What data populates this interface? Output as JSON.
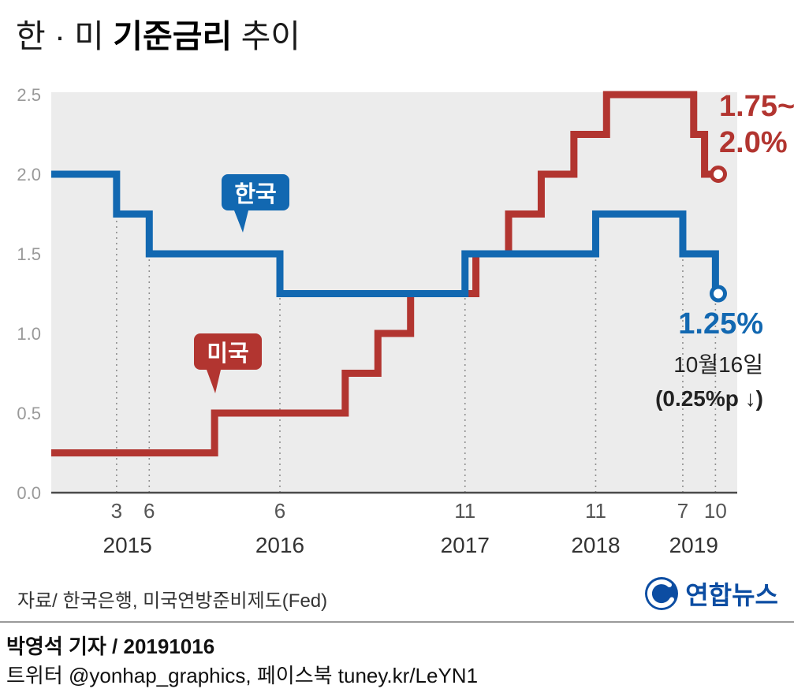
{
  "title": {
    "prefix": "한 · 미 ",
    "bold": "기준금리",
    "suffix": " 추이"
  },
  "labels": {
    "korea_bubble": "한국",
    "us_bubble": "미국"
  },
  "annotations": {
    "us_rate_line1": "1.75~",
    "us_rate_line2": "2.0%",
    "korea_rate": "1.25%",
    "korea_date": "10월16일",
    "korea_change": "(0.25%p ↓)"
  },
  "source": "자료/ 한국은행, 미국연방준비제도(Fed)",
  "logo_text": "연합뉴스",
  "credit": "박영석 기자 /  20191016",
  "social": "트위터 @yonhap_graphics, 페이스북 tuney.kr/LeYN1",
  "chart_data": {
    "type": "line",
    "step": true,
    "title": "한·미 기준금리 추이",
    "ylim": [
      0.0,
      2.5
    ],
    "y_ticks": [
      0.0,
      0.5,
      1.0,
      1.5,
      2.0,
      2.5
    ],
    "x_domain": [
      "2014-09",
      "2019-12"
    ],
    "x_ticks": [
      {
        "date": "2015-03",
        "label": "3"
      },
      {
        "date": "2015-06",
        "label": "6"
      },
      {
        "date": "2016-06",
        "label": "6"
      },
      {
        "date": "2017-11",
        "label": "11"
      },
      {
        "date": "2018-11",
        "label": "11"
      },
      {
        "date": "2019-07",
        "label": "7"
      },
      {
        "date": "2019-10",
        "label": "10"
      }
    ],
    "year_ticks": [
      {
        "date": "2015-04",
        "label": "2015"
      },
      {
        "date": "2016-06",
        "label": "2016"
      },
      {
        "date": "2017-11",
        "label": "2017"
      },
      {
        "date": "2018-11",
        "label": "2018"
      },
      {
        "date": "2019-08",
        "label": "2019"
      }
    ],
    "series": [
      {
        "name": "한국",
        "color": "#1268b1",
        "points": [
          [
            "2014-09",
            2.0
          ],
          [
            "2015-03",
            1.75
          ],
          [
            "2015-06",
            1.5
          ],
          [
            "2016-06",
            1.25
          ],
          [
            "2017-11",
            1.5
          ],
          [
            "2018-11",
            1.75
          ],
          [
            "2019-07",
            1.5
          ],
          [
            "2019-10",
            1.25
          ]
        ]
      },
      {
        "name": "미국",
        "color": "#b23530",
        "points": [
          [
            "2014-09",
            0.25
          ],
          [
            "2015-12",
            0.5
          ],
          [
            "2016-12",
            0.75
          ],
          [
            "2017-03",
            1.0
          ],
          [
            "2017-06",
            1.25
          ],
          [
            "2017-12",
            1.5
          ],
          [
            "2018-03",
            1.75
          ],
          [
            "2018-06",
            2.0
          ],
          [
            "2018-09",
            2.25
          ],
          [
            "2018-12",
            2.5
          ],
          [
            "2019-08",
            2.25
          ],
          [
            "2019-09",
            2.0
          ]
        ]
      }
    ],
    "grid": "dashed-vertical-at-korea-rate-changes",
    "legend_position": "in-plot speech bubbles"
  }
}
